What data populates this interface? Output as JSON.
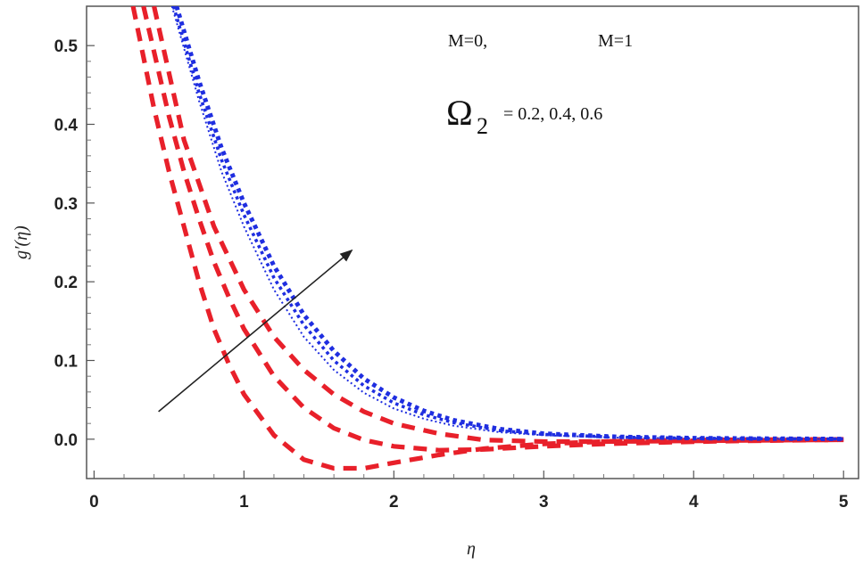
{
  "chart_data": {
    "type": "line",
    "title": "",
    "xlabel": "η",
    "ylabel": "g′(η)",
    "xlim": [
      -0.05,
      5.1
    ],
    "ylim": [
      -0.05,
      0.55
    ],
    "xticks": [
      "0",
      "1",
      "2",
      "3",
      "4",
      "5"
    ],
    "yticks": [
      "0.0",
      "0.1",
      "0.2",
      "0.3",
      "0.4",
      "0.5"
    ],
    "grid": false,
    "annotations": {
      "legend_left": "M=0,",
      "legend_right": "M=1",
      "omega_symbol": "Ω",
      "omega_sub": "2",
      "omega_values": "= 0.2, 0.4, 0.6"
    },
    "arrow": {
      "from": [
        0.43,
        0.035
      ],
      "to": [
        1.72,
        0.24
      ]
    },
    "series": [
      {
        "group": "M=0",
        "color": "#e8202a",
        "style": "dashed",
        "x": [
          0.26,
          0.4,
          0.5,
          0.6,
          0.7,
          0.8,
          0.9,
          1.0,
          1.2,
          1.4,
          1.6,
          1.8,
          2.0,
          2.3,
          2.6,
          3.0,
          3.4,
          3.8,
          4.2,
          4.6,
          5.0
        ],
        "y": [
          0.55,
          0.42,
          0.34,
          0.27,
          0.2,
          0.14,
          0.095,
          0.057,
          0.005,
          -0.026,
          -0.037,
          -0.037,
          -0.03,
          -0.02,
          -0.012,
          -0.006,
          -0.003,
          -0.0015,
          -0.0008,
          -0.0004,
          -0.0002
        ]
      },
      {
        "group": "M=0",
        "color": "#e8202a",
        "style": "dashed",
        "x": [
          0.33,
          0.5,
          0.6,
          0.7,
          0.8,
          0.9,
          1.0,
          1.2,
          1.4,
          1.6,
          1.8,
          2.0,
          2.3,
          2.6,
          3.0,
          3.4,
          3.8,
          4.2,
          4.6,
          5.0
        ],
        "y": [
          0.55,
          0.41,
          0.34,
          0.28,
          0.225,
          0.18,
          0.14,
          0.08,
          0.04,
          0.014,
          -0.001,
          -0.009,
          -0.014,
          -0.013,
          -0.009,
          -0.006,
          -0.004,
          -0.0025,
          -0.0015,
          -0.0008
        ]
      },
      {
        "group": "M=0",
        "color": "#e8202a",
        "style": "dashed",
        "x": [
          0.4,
          0.6,
          0.8,
          1.0,
          1.2,
          1.4,
          1.6,
          1.8,
          2.0,
          2.3,
          2.6,
          3.0,
          3.4,
          3.8,
          4.2,
          4.6,
          5.0
        ],
        "y": [
          0.55,
          0.38,
          0.27,
          0.19,
          0.13,
          0.088,
          0.057,
          0.035,
          0.02,
          0.007,
          -0.001,
          -0.003,
          -0.003,
          -0.0025,
          -0.0018,
          -0.0012,
          -0.0008
        ]
      },
      {
        "group": "M=1",
        "color": "#1f2ee0",
        "style": "dotted-fine",
        "x": [
          0.52,
          0.7,
          0.85,
          1.0,
          1.2,
          1.4,
          1.6,
          1.8,
          2.0,
          2.2,
          2.4,
          2.7,
          3.0,
          3.5,
          4.0,
          4.5,
          5.0
        ],
        "y": [
          0.55,
          0.43,
          0.34,
          0.27,
          0.19,
          0.13,
          0.088,
          0.059,
          0.039,
          0.026,
          0.017,
          0.009,
          0.005,
          0.002,
          0.001,
          0.0005,
          0.0002
        ]
      },
      {
        "group": "M=1",
        "color": "#1f2ee0",
        "style": "dotted-mid",
        "x": [
          0.53,
          0.7,
          0.85,
          1.0,
          1.2,
          1.4,
          1.6,
          1.8,
          2.0,
          2.2,
          2.4,
          2.7,
          3.0,
          3.5,
          4.0,
          4.5,
          5.0
        ],
        "y": [
          0.55,
          0.44,
          0.355,
          0.285,
          0.205,
          0.145,
          0.1,
          0.068,
          0.046,
          0.031,
          0.021,
          0.011,
          0.006,
          0.0025,
          0.0012,
          0.0006,
          0.0003
        ]
      },
      {
        "group": "M=1",
        "color": "#1f2ee0",
        "style": "dotted-heavy",
        "x": [
          0.55,
          0.7,
          0.85,
          1.0,
          1.2,
          1.4,
          1.6,
          1.8,
          2.0,
          2.2,
          2.4,
          2.7,
          3.0,
          3.5,
          4.0,
          4.5,
          5.0
        ],
        "y": [
          0.55,
          0.455,
          0.37,
          0.3,
          0.22,
          0.158,
          0.112,
          0.077,
          0.053,
          0.036,
          0.024,
          0.013,
          0.007,
          0.003,
          0.0014,
          0.0007,
          0.0003
        ]
      }
    ]
  }
}
